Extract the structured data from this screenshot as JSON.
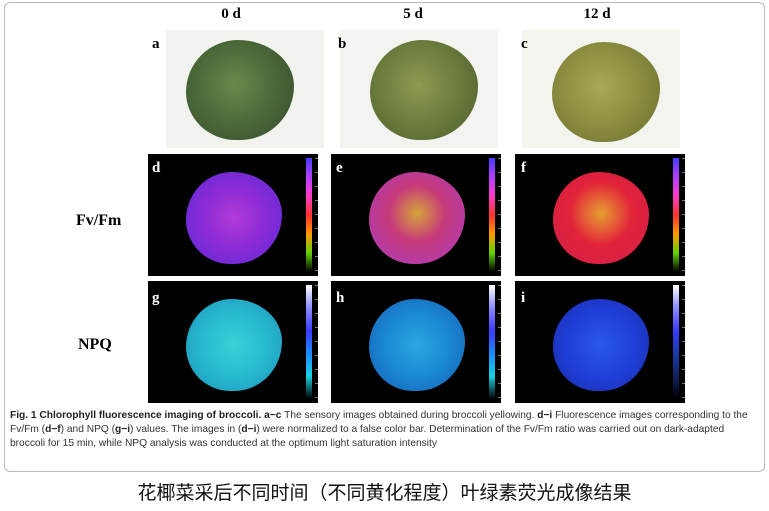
{
  "figure": {
    "columns": [
      "0 d",
      "5 d",
      "12 d"
    ],
    "row_labels": [
      "Fv/Fm",
      "NPQ"
    ],
    "panel_letters": [
      "a",
      "b",
      "c",
      "d",
      "e",
      "f",
      "g",
      "h",
      "i"
    ],
    "caption": {
      "lead": "Fig. 1 Chlorophyll fluorescence imaging of broccoli.",
      "seg1_bold": "a−c",
      "seg1": " The sensory images obtained during broccoli yellowing. ",
      "seg2_bold": "d−i",
      "seg2": " Fluorescence images corresponding to the Fv/Fm (",
      "seg3_bold": "d−f",
      "seg3": ") and NPQ (",
      "seg4_bold": "g−i",
      "seg4": ") values. The images in (",
      "seg5_bold": "d−i",
      "seg5": ") were normalized to a false color bar. Determination of the Fv/Fm ratio was carried out on dark-adapted broccoli for 15 min, while NPQ analysis was conducted at the optimum light saturation intensity"
    }
  },
  "bottom_title": "花椰菜采后不同时间（不同黄化程度）叶绿素荧光成像结果",
  "colors": {
    "photo_day0": "#4d6b3a",
    "photo_day5": "#6b7c3c",
    "photo_day12": "#8a8d3e",
    "fvfm_day0": "#8c2bd6",
    "fvfm_day5": "#c63a7a",
    "fvfm_day12": "#e2233a",
    "npq_day0": "#27b9cf",
    "npq_day5": "#1a86d4",
    "npq_day12": "#1f3fd8"
  }
}
